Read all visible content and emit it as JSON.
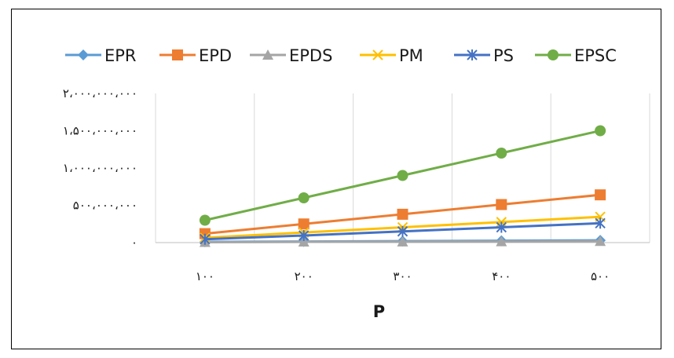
{
  "chart_data": {
    "type": "line",
    "title": "",
    "xlabel": "P",
    "ylabel": "",
    "categories": [
      "١٠٠",
      "٢٠٠",
      "٣٠٠",
      "۴٠٠",
      "۵٠٠"
    ],
    "x": [
      100,
      200,
      300,
      400,
      500
    ],
    "ylim": [
      0,
      2000000000
    ],
    "yticks": [
      0,
      500000000,
      1000000000,
      1500000000,
      2000000000
    ],
    "ytick_labels": [
      "٠",
      "۵٠٠،٠٠٠،٠٠٠",
      "١،٠٠٠،٠٠٠،٠٠٠",
      "١،۵٠٠،٠٠٠،٠٠٠",
      "٢،٠٠٠،٠٠٠،٠٠٠"
    ],
    "grid": "vertical",
    "legend_position": "top",
    "series": [
      {
        "name": "EPR",
        "color": "#5B9BD5",
        "marker": "diamond",
        "values": [
          10000000,
          15000000,
          20000000,
          25000000,
          30000000
        ]
      },
      {
        "name": "EPD",
        "color": "#ED7D31",
        "marker": "square",
        "values": [
          120000000,
          250000000,
          380000000,
          510000000,
          640000000
        ]
      },
      {
        "name": "EPDS",
        "color": "#A5A5A5",
        "marker": "triangle",
        "values": [
          5000000,
          10000000,
          12000000,
          15000000,
          18000000
        ]
      },
      {
        "name": "PM",
        "color": "#FFC000",
        "marker": "x",
        "values": [
          65000000,
          135000000,
          205000000,
          275000000,
          345000000
        ]
      },
      {
        "name": "PS",
        "color": "#4472C4",
        "marker": "star",
        "values": [
          45000000,
          95000000,
          150000000,
          205000000,
          260000000
        ]
      },
      {
        "name": "EPSC",
        "color": "#70AD47",
        "marker": "circle",
        "values": [
          300000000,
          600000000,
          900000000,
          1200000000,
          1500000000
        ]
      }
    ]
  }
}
